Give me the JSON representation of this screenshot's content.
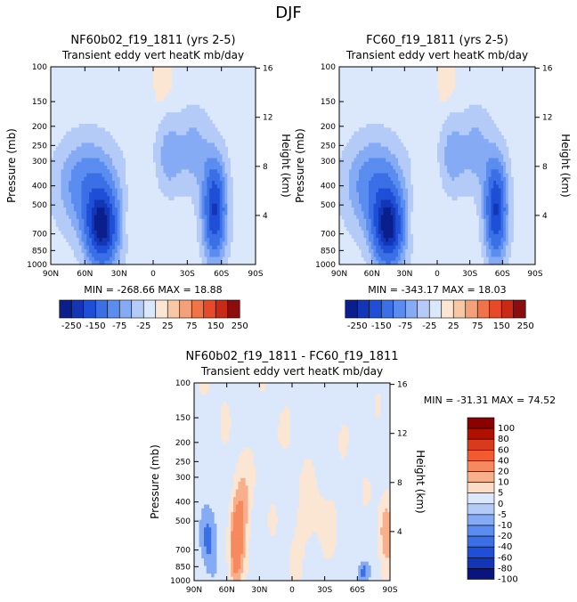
{
  "figure_title": "DJF",
  "chart_data": [
    {
      "type": "heatmap",
      "id": "p1",
      "title": "NF60b02_f19_1811 (yrs 2-5)",
      "subtitle": "Transient eddy vert heatK mb/day",
      "xlabel": "",
      "ylabel": "Pressure (mb)",
      "y2label": "Height (km)",
      "xticks": [
        "90N",
        "60N",
        "30N",
        "0",
        "30S",
        "60S",
        "90S"
      ],
      "yticks": [
        "100",
        "150",
        "200",
        "250",
        "300",
        "400",
        "500",
        "700",
        "850",
        "1000"
      ],
      "y2ticks": [
        "16",
        "12",
        "8",
        "4"
      ],
      "stats": "MIN = -268.66   MAX = 18.88",
      "colorbar_labels": [
        "-250",
        "-150",
        "-75",
        "-25",
        "25",
        "75",
        "150",
        "250"
      ]
    },
    {
      "type": "heatmap",
      "id": "p2",
      "title": "FC60_f19_1811 (yrs 2-5)",
      "subtitle": "Transient eddy vert heatK mb/day",
      "xlabel": "",
      "ylabel": "Pressure (mb)",
      "y2label": "Height (km)",
      "xticks": [
        "90N",
        "60N",
        "30N",
        "0",
        "30S",
        "60S",
        "90S"
      ],
      "yticks": [
        "100",
        "150",
        "200",
        "250",
        "300",
        "400",
        "500",
        "700",
        "850",
        "1000"
      ],
      "y2ticks": [
        "16",
        "12",
        "8",
        "4"
      ],
      "stats": "MIN = -343.17   MAX = 18.03",
      "colorbar_labels": [
        "-250",
        "-150",
        "-75",
        "-25",
        "25",
        "75",
        "150",
        "250"
      ]
    },
    {
      "type": "heatmap",
      "id": "p3",
      "title": "NF60b02_f19_1811 - FC60_f19_1811",
      "subtitle": "Transient eddy vert heatK mb/day",
      "xlabel": "",
      "ylabel": "Pressure (mb)",
      "y2label": "Height (km)",
      "xticks": [
        "90N",
        "60N",
        "30N",
        "0",
        "30S",
        "60S",
        "90S"
      ],
      "yticks": [
        "100",
        "150",
        "200",
        "250",
        "300",
        "400",
        "500",
        "700",
        "850",
        "1000"
      ],
      "y2ticks": [
        "16",
        "12",
        "8",
        "4"
      ],
      "stats": "MIN = -31.31   MAX =  74.52",
      "colorbar_labels": [
        "100",
        "80",
        "60",
        "40",
        "20",
        "10",
        "5",
        "0",
        "-5",
        "-10",
        "-20",
        "-40",
        "-60",
        "-80",
        "-100"
      ]
    }
  ],
  "colors": {
    "palette_top": [
      "#0a1f8c",
      "#1236b5",
      "#1e4fd6",
      "#3a6fe6",
      "#5b8cf0",
      "#86abf5",
      "#b4cbf7",
      "#dbe8fb",
      "#fbe6d4",
      "#f8c7a4",
      "#f4a078",
      "#f07448",
      "#e64a28",
      "#c82a17",
      "#8c0d0d"
    ],
    "palette_diff": [
      "#8b0000",
      "#b01000",
      "#d83a1c",
      "#f25a30",
      "#f7895e",
      "#f8b08c",
      "#fcdcc6",
      "#dbe8fb",
      "#b4cbf7",
      "#86abf5",
      "#5b8cf0",
      "#3a6fe6",
      "#1e4fd6",
      "#1236b5",
      "#0a1480"
    ],
    "bg_light_blue": "#dbe8fb",
    "bg_light_peach": "#fbe6d4"
  }
}
